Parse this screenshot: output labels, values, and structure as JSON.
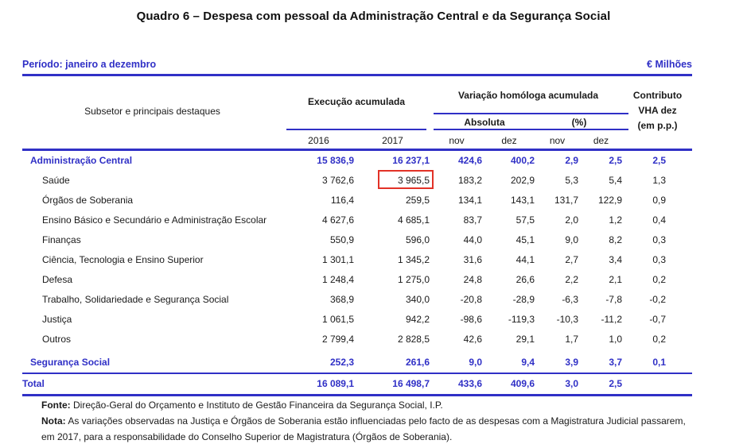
{
  "title": "Quadro 6 – Despesa com pessoal da Administração Central e da Segurança Social",
  "period_bar": {
    "period": "Período: janeiro a dezembro",
    "unit": "€ Milhões"
  },
  "colors": {
    "accent_blue": "#3030c6",
    "highlight_red": "#e23227"
  },
  "table": {
    "headers": {
      "subsetor": "Subsetor e principais destaques",
      "execucao": "Execução acumulada",
      "variacao": "Variação homóloga acumulada",
      "absoluta": "Absoluta",
      "percent": "(%)",
      "contributo_line1": "Contributo",
      "contributo_line2": "VHA dez",
      "contributo_line3": "(em p.p.)"
    },
    "sub_headers": [
      "2016",
      "2017",
      "nov",
      "dez",
      "nov",
      "dez"
    ],
    "rows": [
      {
        "label": "Administração Central",
        "values": [
          "15 836,9",
          "16 237,1",
          "424,6",
          "400,2",
          "2,9",
          "2,5",
          "2,5"
        ]
      },
      {
        "label": "Saúde",
        "values": [
          "3 762,6",
          "3 965,5",
          "183,2",
          "202,9",
          "5,3",
          "5,4",
          "1,3"
        ],
        "highlighted_value": "3 965,5"
      },
      {
        "label": "Órgãos de Soberania",
        "values": [
          "116,4",
          "259,5",
          "134,1",
          "143,1",
          "131,7",
          "122,9",
          "0,9"
        ]
      },
      {
        "label": "Ensino Básico e Secundário e Administração Escolar",
        "values": [
          "4 627,6",
          "4 685,1",
          "83,7",
          "57,5",
          "2,0",
          "1,2",
          "0,4"
        ]
      },
      {
        "label": "Finanças",
        "values": [
          "550,9",
          "596,0",
          "44,0",
          "45,1",
          "9,0",
          "8,2",
          "0,3"
        ]
      },
      {
        "label": "Ciência, Tecnologia e Ensino Superior",
        "values": [
          "1 301,1",
          "1 345,2",
          "31,6",
          "44,1",
          "2,7",
          "3,4",
          "0,3"
        ]
      },
      {
        "label": "Defesa",
        "values": [
          "1 248,4",
          "1 275,0",
          "24,8",
          "26,6",
          "2,2",
          "2,1",
          "0,2"
        ]
      },
      {
        "label": "Trabalho, Solidariedade e Segurança Social",
        "values": [
          "368,9",
          "340,0",
          "-20,8",
          "-28,9",
          "-6,3",
          "-7,8",
          "-0,2"
        ]
      },
      {
        "label": "Justiça",
        "values": [
          "1 061,5",
          "942,2",
          "-98,6",
          "-119,3",
          "-10,3",
          "-11,2",
          "-0,7"
        ]
      },
      {
        "label": "Outros",
        "values": [
          "2 799,4",
          "2 828,5",
          "42,6",
          "29,1",
          "1,7",
          "1,0",
          "0,2"
        ]
      },
      {
        "label": "Segurança Social",
        "values": [
          "252,3",
          "261,6",
          "9,0",
          "9,4",
          "3,9",
          "3,7",
          "0,1"
        ]
      },
      {
        "label": "Total",
        "values": [
          "16 089,1",
          "16 498,7",
          "433,6",
          "409,6",
          "3,0",
          "2,5",
          ""
        ]
      }
    ]
  },
  "footer": {
    "fonte_label": "Fonte:",
    "fonte_text": " Direção-Geral do Orçamento e Instituto de Gestão Financeira da Segurança Social, I.P.",
    "nota_label": "Nota:",
    "nota_line1": " As variações observadas na Justiça e Órgãos de Soberania estão influenciadas pelo facto de as despesas com a Magistratura Judicial passarem,",
    "nota_line2": "em 2017, para a responsabilidade do Conselho Superior de Magistratura (Órgãos de Soberania)."
  }
}
